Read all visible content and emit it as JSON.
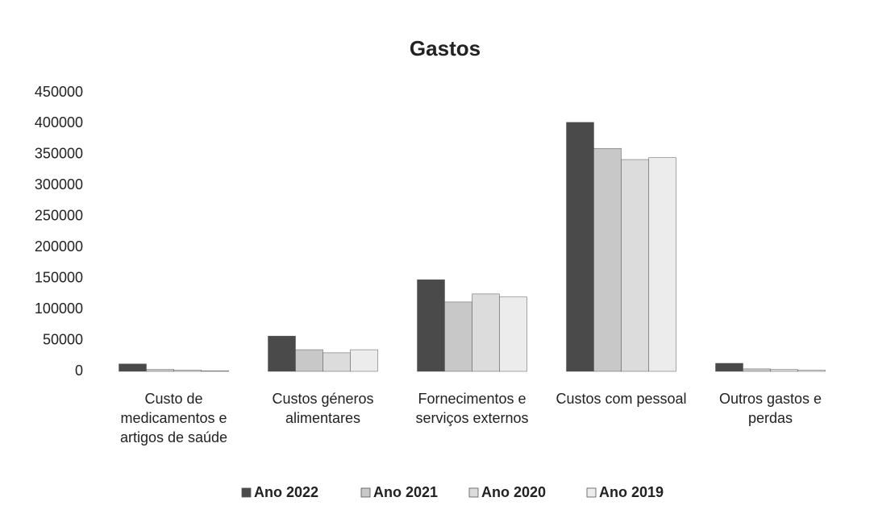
{
  "chart_data": {
    "type": "bar",
    "title": "Gastos",
    "categories": [
      "Custo de medicamentos e artigos de saúde",
      "Custos géneros alimentares",
      "Fornecimentos e serviços externos",
      "Custos com pessoal",
      "Outros gastos e perdas"
    ],
    "series": [
      {
        "name": "Ano 2022",
        "color": "#4a4a4a",
        "values": [
          12000,
          57000,
          148000,
          402000,
          13000
        ]
      },
      {
        "name": "Ano 2021",
        "color": "#c8c8c8",
        "values": [
          3000,
          35000,
          112000,
          360000,
          4000
        ]
      },
      {
        "name": "Ano 2020",
        "color": "#dcdcdc",
        "values": [
          2000,
          30000,
          125000,
          342000,
          3000
        ]
      },
      {
        "name": "Ano 2019",
        "color": "#ececec",
        "values": [
          1000,
          35000,
          120000,
          345000,
          2000
        ]
      }
    ],
    "ylim": [
      0,
      450000
    ],
    "yticks": [
      0,
      50000,
      100000,
      150000,
      200000,
      250000,
      300000,
      350000,
      400000,
      450000
    ],
    "grid": false,
    "legend": "bottom"
  }
}
